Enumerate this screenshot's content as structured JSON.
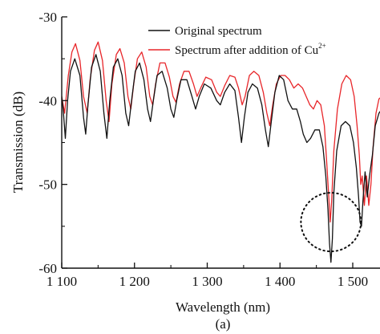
{
  "chart_data": {
    "type": "line",
    "xlabel": "Wavelength (nm)",
    "ylabel": "Transmission (dB)",
    "panel_label": "(a)",
    "xlim": [
      1100,
      1540
    ],
    "ylim": [
      -60,
      -30
    ],
    "xticks": [
      {
        "value": 1100,
        "label": "1 100"
      },
      {
        "value": 1200,
        "label": "1 200"
      },
      {
        "value": 1300,
        "label": "1 300"
      },
      {
        "value": 1400,
        "label": "1 400"
      },
      {
        "value": 1500,
        "label": "1 500"
      }
    ],
    "yticks": [
      {
        "value": -30,
        "label": "-30"
      },
      {
        "value": -40,
        "label": "-40"
      },
      {
        "value": -50,
        "label": "-50"
      },
      {
        "value": -60,
        "label": "-60"
      }
    ],
    "legend": {
      "placement": "top",
      "entries": [
        {
          "series": 0,
          "text": "Original spectrum"
        },
        {
          "series": 1,
          "text": "Spectrum after addition of Cu",
          "superscript": "2+"
        }
      ]
    },
    "annotation": {
      "type": "dotted-ellipse",
      "center": [
        1470,
        -54.5
      ],
      "rx": 28,
      "ry": 3.5
    },
    "series": [
      {
        "name": "Original spectrum",
        "color": "#111111",
        "points": [
          [
            1085,
            -35.0
          ],
          [
            1095,
            -36.0
          ],
          [
            1102,
            -41.0
          ],
          [
            1105,
            -44.5
          ],
          [
            1108,
            -40.0
          ],
          [
            1112,
            -36.5
          ],
          [
            1118,
            -35.0
          ],
          [
            1125,
            -37.0
          ],
          [
            1130,
            -42.0
          ],
          [
            1133,
            -44.0
          ],
          [
            1136,
            -40.5
          ],
          [
            1141,
            -36.0
          ],
          [
            1147,
            -34.5
          ],
          [
            1153,
            -36.5
          ],
          [
            1158,
            -41.5
          ],
          [
            1162,
            -44.5
          ],
          [
            1166,
            -40.0
          ],
          [
            1171,
            -36.0
          ],
          [
            1177,
            -35.0
          ],
          [
            1183,
            -37.0
          ],
          [
            1188,
            -41.5
          ],
          [
            1192,
            -43.0
          ],
          [
            1196,
            -40.0
          ],
          [
            1201,
            -36.5
          ],
          [
            1207,
            -35.5
          ],
          [
            1213,
            -37.5
          ],
          [
            1218,
            -41.0
          ],
          [
            1222,
            -42.5
          ],
          [
            1226,
            -40.0
          ],
          [
            1231,
            -37.0
          ],
          [
            1238,
            -36.5
          ],
          [
            1245,
            -38.5
          ],
          [
            1250,
            -41.0
          ],
          [
            1254,
            -42.0
          ],
          [
            1258,
            -40.0
          ],
          [
            1264,
            -37.5
          ],
          [
            1272,
            -37.5
          ],
          [
            1279,
            -39.5
          ],
          [
            1284,
            -41.0
          ],
          [
            1289,
            -39.5
          ],
          [
            1296,
            -38.0
          ],
          [
            1305,
            -38.5
          ],
          [
            1313,
            -40.0
          ],
          [
            1318,
            -40.5
          ],
          [
            1324,
            -39.0
          ],
          [
            1331,
            -38.0
          ],
          [
            1338,
            -38.8
          ],
          [
            1343,
            -42.0
          ],
          [
            1347,
            -45.0
          ],
          [
            1351,
            -42.0
          ],
          [
            1356,
            -39.0
          ],
          [
            1362,
            -38.0
          ],
          [
            1369,
            -38.5
          ],
          [
            1375,
            -40.5
          ],
          [
            1380,
            -43.5
          ],
          [
            1384,
            -45.5
          ],
          [
            1388,
            -42.5
          ],
          [
            1393,
            -39.0
          ],
          [
            1399,
            -37.0
          ],
          [
            1405,
            -37.5
          ],
          [
            1411,
            -40.0
          ],
          [
            1417,
            -41.0
          ],
          [
            1423,
            -41.0
          ],
          [
            1428,
            -42.5
          ],
          [
            1432,
            -44.0
          ],
          [
            1437,
            -45.0
          ],
          [
            1442,
            -44.5
          ],
          [
            1448,
            -43.5
          ],
          [
            1454,
            -43.5
          ],
          [
            1459,
            -45.5
          ],
          [
            1463,
            -49.0
          ],
          [
            1466,
            -53.0
          ],
          [
            1468,
            -57.0
          ],
          [
            1470,
            -59.3
          ],
          [
            1472,
            -56.5
          ],
          [
            1474,
            -51.0
          ],
          [
            1478,
            -46.0
          ],
          [
            1484,
            -43.0
          ],
          [
            1490,
            -42.5
          ],
          [
            1496,
            -43.0
          ],
          [
            1501,
            -45.0
          ],
          [
            1505,
            -48.0
          ],
          [
            1508,
            -51.5
          ],
          [
            1510,
            -54.5
          ],
          [
            1512,
            -55.0
          ],
          [
            1514,
            -52.0
          ],
          [
            1517,
            -48.5
          ],
          [
            1520,
            -51.5
          ],
          [
            1523,
            -49.0
          ],
          [
            1527,
            -46.5
          ],
          [
            1531,
            -43.0
          ],
          [
            1536,
            -41.5
          ],
          [
            1540,
            -41.0
          ]
        ]
      },
      {
        "name": "Spectrum after addition of Cu2+",
        "color": "#e8262a",
        "points": [
          [
            1085,
            -33.5
          ],
          [
            1093,
            -34.8
          ],
          [
            1098,
            -38.5
          ],
          [
            1104,
            -41.5
          ],
          [
            1109,
            -37.0
          ],
          [
            1114,
            -34.2
          ],
          [
            1119,
            -33.2
          ],
          [
            1125,
            -35.2
          ],
          [
            1130,
            -39.5
          ],
          [
            1135,
            -41.5
          ],
          [
            1139,
            -37.5
          ],
          [
            1145,
            -34.0
          ],
          [
            1150,
            -33.0
          ],
          [
            1156,
            -35.2
          ],
          [
            1161,
            -40.0
          ],
          [
            1165,
            -42.5
          ],
          [
            1169,
            -38.0
          ],
          [
            1175,
            -34.5
          ],
          [
            1180,
            -33.8
          ],
          [
            1186,
            -35.5
          ],
          [
            1191,
            -39.5
          ],
          [
            1195,
            -41.0
          ],
          [
            1199,
            -38.0
          ],
          [
            1204,
            -35.0
          ],
          [
            1210,
            -34.2
          ],
          [
            1216,
            -36.0
          ],
          [
            1221,
            -39.5
          ],
          [
            1225,
            -40.5
          ],
          [
            1229,
            -38.0
          ],
          [
            1235,
            -35.5
          ],
          [
            1242,
            -35.5
          ],
          [
            1248,
            -37.2
          ],
          [
            1253,
            -39.5
          ],
          [
            1257,
            -40.2
          ],
          [
            1262,
            -38.0
          ],
          [
            1268,
            -36.5
          ],
          [
            1275,
            -36.5
          ],
          [
            1281,
            -38.0
          ],
          [
            1286,
            -39.5
          ],
          [
            1291,
            -38.5
          ],
          [
            1298,
            -37.2
          ],
          [
            1306,
            -37.5
          ],
          [
            1313,
            -39.0
          ],
          [
            1318,
            -39.5
          ],
          [
            1324,
            -38.2
          ],
          [
            1331,
            -37.0
          ],
          [
            1338,
            -37.2
          ],
          [
            1343,
            -38.5
          ],
          [
            1348,
            -40.5
          ],
          [
            1352,
            -39.5
          ],
          [
            1358,
            -37.0
          ],
          [
            1364,
            -36.5
          ],
          [
            1371,
            -37.0
          ],
          [
            1377,
            -39.0
          ],
          [
            1382,
            -41.5
          ],
          [
            1386,
            -43.0
          ],
          [
            1390,
            -40.5
          ],
          [
            1395,
            -38.0
          ],
          [
            1401,
            -37.0
          ],
          [
            1407,
            -37.0
          ],
          [
            1413,
            -37.5
          ],
          [
            1419,
            -38.5
          ],
          [
            1425,
            -38.0
          ],
          [
            1431,
            -38.5
          ],
          [
            1436,
            -39.5
          ],
          [
            1441,
            -40.5
          ],
          [
            1446,
            -41.0
          ],
          [
            1451,
            -40.0
          ],
          [
            1456,
            -40.5
          ],
          [
            1461,
            -43.0
          ],
          [
            1464,
            -47.0
          ],
          [
            1467,
            -51.5
          ],
          [
            1469,
            -54.5
          ],
          [
            1471,
            -52.0
          ],
          [
            1474,
            -46.0
          ],
          [
            1479,
            -41.0
          ],
          [
            1485,
            -38.0
          ],
          [
            1491,
            -37.0
          ],
          [
            1497,
            -37.5
          ],
          [
            1502,
            -39.5
          ],
          [
            1506,
            -43.0
          ],
          [
            1509,
            -46.5
          ],
          [
            1511,
            -50.0
          ],
          [
            1513,
            -49.0
          ],
          [
            1516,
            -52.5
          ],
          [
            1519,
            -49.0
          ],
          [
            1522,
            -52.5
          ],
          [
            1525,
            -50.0
          ],
          [
            1528,
            -45.5
          ],
          [
            1532,
            -41.5
          ],
          [
            1536,
            -39.8
          ],
          [
            1540,
            -39.5
          ]
        ]
      }
    ]
  }
}
